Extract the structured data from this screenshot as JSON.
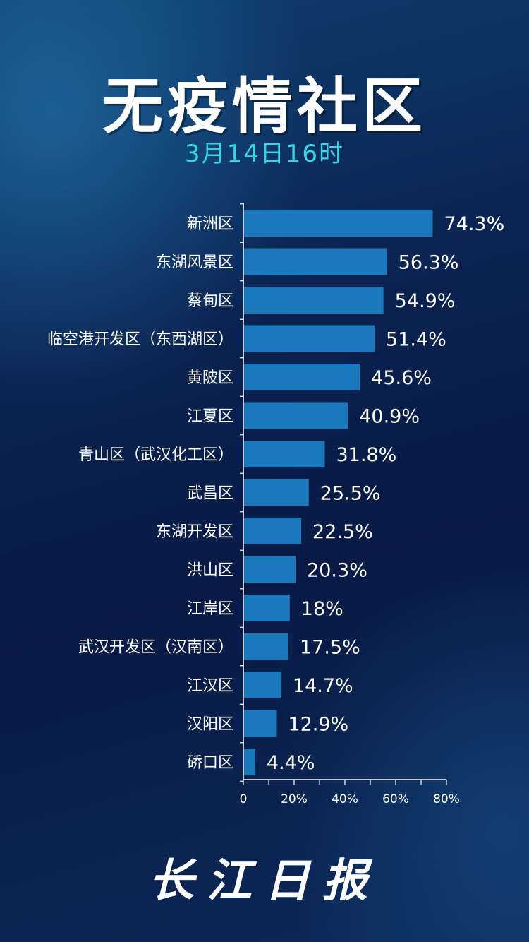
{
  "header": {
    "title": "无疫情社区",
    "subtitle": "3月14日16时"
  },
  "logo": {
    "text": "长江日报"
  },
  "colors": {
    "bar": "#1a78bc",
    "subtitle": "#35d6ea",
    "text": "#ffffff"
  },
  "chart_data": {
    "type": "bar",
    "orientation": "horizontal",
    "categories": [
      "新洲区",
      "东湖风景区",
      "蔡甸区",
      "临空港开发区（东西湖区）",
      "黄陂区",
      "江夏区",
      "青山区（武汉化工区）",
      "武昌区",
      "东湖开发区",
      "洪山区",
      "江岸区",
      "武汉开发区（汉南区）",
      "江汉区",
      "汉阳区",
      "硚口区"
    ],
    "values": [
      74.3,
      56.3,
      54.9,
      51.4,
      45.6,
      40.9,
      31.8,
      25.5,
      22.5,
      20.3,
      18,
      17.5,
      14.7,
      12.9,
      4.4
    ],
    "value_labels": [
      "74.3%",
      "56.3%",
      "54.9%",
      "51.4%",
      "45.6%",
      "40.9%",
      "31.8%",
      "25.5%",
      "22.5%",
      "20.3%",
      "18%",
      "17.5%",
      "14.7%",
      "12.9%",
      "4.4%"
    ],
    "x_ticks": [
      0,
      10,
      20,
      30,
      40,
      50,
      60,
      70,
      80
    ],
    "x_tick_labels": [
      "0",
      "20%",
      "40%",
      "60%",
      "80%"
    ],
    "x_labeled_ticks": [
      0,
      20,
      40,
      60,
      80
    ],
    "xlim": [
      0,
      80
    ],
    "grid": false,
    "legend": "none"
  }
}
